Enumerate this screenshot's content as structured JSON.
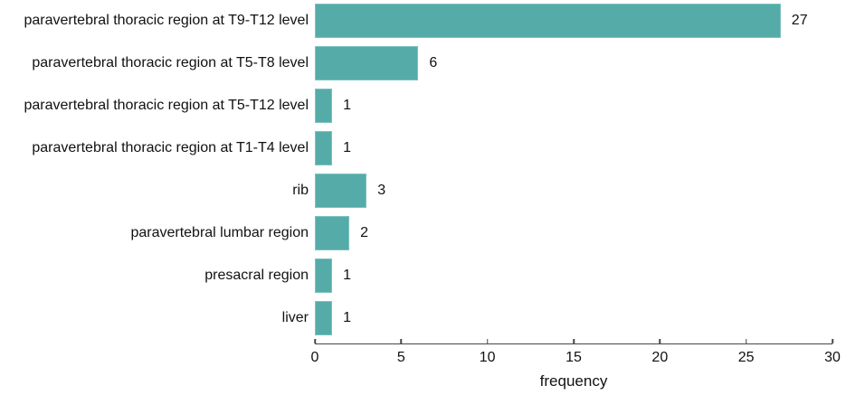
{
  "chart_data": {
    "type": "bar",
    "orientation": "horizontal",
    "title": "",
    "xlabel": "frequency",
    "ylabel": "",
    "xlim": [
      0,
      30
    ],
    "xticks": [
      0,
      5,
      10,
      15,
      20,
      25,
      30
    ],
    "grid": false,
    "legend": false,
    "categories": [
      "paravertebral thoracic region at T9-T12 level",
      "paravertebral thoracic region at T5-T8 level",
      "paravertebral thoracic region at T5-T12 level",
      "paravertebral thoracic region at T1-T4 level",
      "rib",
      "paravertebral lumbar region",
      "presacral region",
      "liver"
    ],
    "values": [
      27,
      6,
      1,
      1,
      3,
      2,
      1,
      1
    ],
    "colors": {
      "bar": "#55aba7",
      "bar_border": "#7cc2be",
      "axis": "#474747",
      "text": "#111111",
      "background": "#ffffff"
    }
  }
}
